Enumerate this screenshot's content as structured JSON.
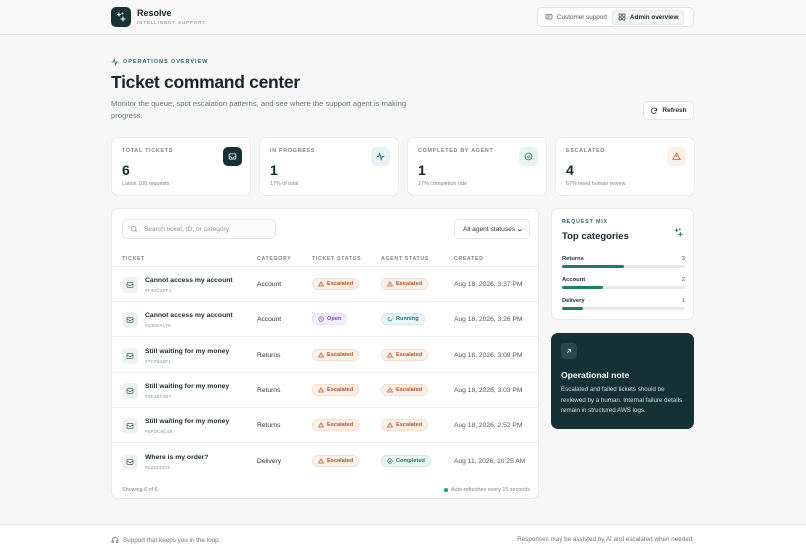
{
  "brand": {
    "name": "Resolve",
    "tagline": "INTELLIGENT SUPPORT"
  },
  "nav": {
    "items": [
      {
        "label": "Customer support",
        "icon": "message-square-icon",
        "active": false
      },
      {
        "label": "Admin overview",
        "icon": "grid-icon",
        "active": true
      }
    ]
  },
  "header": {
    "eyebrow": "OPERATIONS OVERVIEW",
    "title": "Ticket command center",
    "description": "Monitor the queue, spot escalation patterns, and see where the support agent is making progress.",
    "refresh_label": "Refresh"
  },
  "stats": [
    {
      "label": "TOTAL TICKETS",
      "value": "6",
      "sub": "Latest 100 requests",
      "icon": "inbox-icon"
    },
    {
      "label": "IN PROGRESS",
      "value": "1",
      "sub": "17% of total",
      "icon": "activity-icon"
    },
    {
      "label": "COMPLETED BY AGENT",
      "value": "1",
      "sub": "17% completion rate",
      "icon": "check-circle-icon"
    },
    {
      "label": "ESCALATED",
      "value": "4",
      "sub": "67% need human review",
      "icon": "alert-triangle-icon"
    }
  ],
  "table": {
    "search_placeholder": "Search ticket, ID, or category",
    "filter_value": "All agent statuses",
    "columns": [
      "TICKET",
      "CATEGORY",
      "TICKET STATUS",
      "AGENT STATUS",
      "CREATED"
    ],
    "rows": [
      {
        "title": "Cannot access my account",
        "id": "#F32C2EF1",
        "category": "Account",
        "ticket_status": "Escalated",
        "agent_status": "Escalated",
        "created": "Aug 18, 2026, 3:37 PM"
      },
      {
        "title": "Cannot access my account",
        "id": "#438SA175",
        "category": "Account",
        "ticket_status": "Open",
        "agent_status": "Running",
        "created": "Aug 18, 2026, 3:26 PM"
      },
      {
        "title": "Still waiting for my money",
        "id": "#7CF526F1",
        "category": "Returns",
        "ticket_status": "Escalated",
        "agent_status": "Escalated",
        "created": "Aug 18, 2026, 3:09 PM"
      },
      {
        "title": "Still waiting for my money",
        "id": "#3E3BF3B7",
        "category": "Returns",
        "ticket_status": "Escalated",
        "agent_status": "Escalated",
        "created": "Aug 18, 2026, 3:03 PM"
      },
      {
        "title": "Still waiting for my money",
        "id": "#8FDC6C48",
        "category": "Returns",
        "ticket_status": "Escalated",
        "agent_status": "Escalated",
        "created": "Aug 18, 2026, 2:52 PM"
      },
      {
        "title": "Where is my order?",
        "id": "#22223333",
        "category": "Delivery",
        "ticket_status": "Escalated",
        "agent_status": "Completed",
        "created": "Aug 11, 2026, 10:25 AM"
      }
    ],
    "footer_left": "Showing 6 of 6",
    "footer_right": "Auto-refreshes every 15 seconds"
  },
  "mix": {
    "eyebrow": "REQUEST MIX",
    "title": "Top categories",
    "items": [
      {
        "name": "Returns",
        "count": "3",
        "fraction": 0.5
      },
      {
        "name": "Account",
        "count": "2",
        "fraction": 0.33
      },
      {
        "name": "Delivery",
        "count": "1",
        "fraction": 0.17
      }
    ]
  },
  "note": {
    "title": "Operational note",
    "body": "Escalated and failed tickets should be reviewed by a human. Internal failure details remain in structured AWS logs."
  },
  "footer": {
    "left": "Support that keeps you in the loop.",
    "right": "Responses may be assisted by AI and escalated when needed."
  },
  "colors": {
    "brand_dark": "#163136",
    "accent": "#1f7d6c",
    "escalated": "#b4521f",
    "open": "#7b3fb8",
    "running": "#24707e",
    "completed": "#2b7a52"
  }
}
